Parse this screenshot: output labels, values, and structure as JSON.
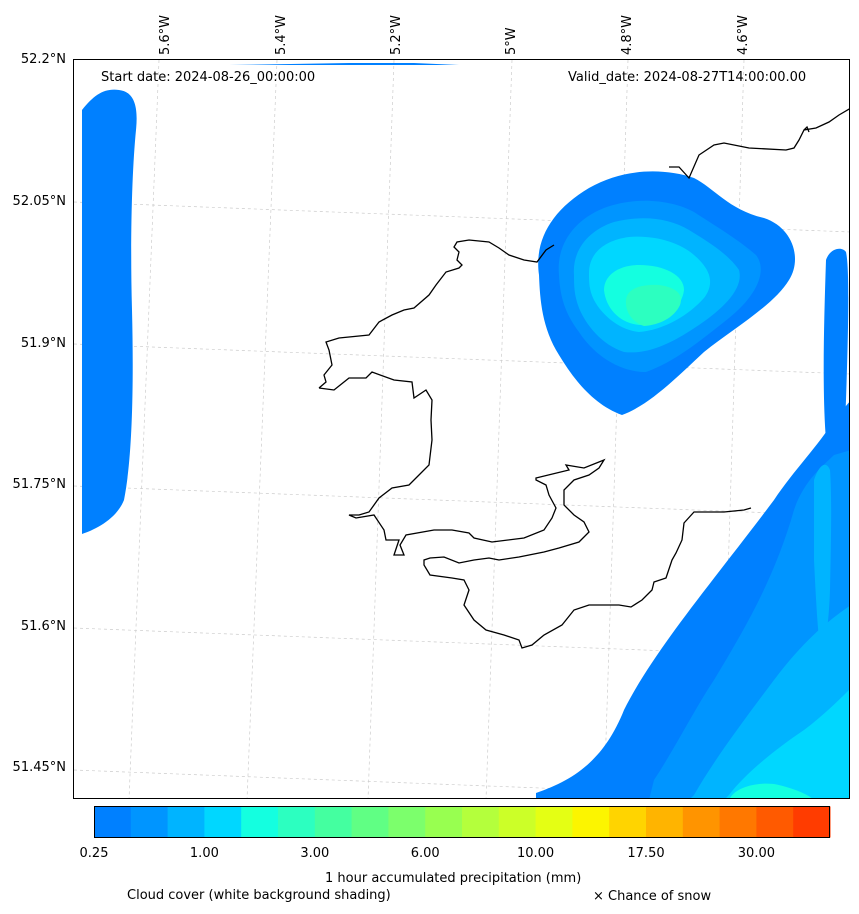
{
  "map": {
    "start_date": "Start date: 2024-08-26_00:00:00",
    "valid_date": "Valid_date: 2024-08-27T14:00:00.00",
    "lon_labels": [
      "5.6°W",
      "5.4°W",
      "5.2°W",
      "5°W",
      "4.8°W",
      "4.6°W"
    ],
    "lat_labels": [
      "52.2°N",
      "52.05°N",
      "51.9°N",
      "51.75°N",
      "51.6°N",
      "51.45°N"
    ],
    "coastline_color": "#000000",
    "gridline_color": "#cccccc"
  },
  "colorbar": {
    "colors": [
      "#0080ff",
      "#0095ff",
      "#00b4ff",
      "#00d7ff",
      "#14ffe0",
      "#2cffc0",
      "#44ffa0",
      "#60ff84",
      "#7cff6c",
      "#98ff50",
      "#b4ff3c",
      "#ccff28",
      "#e4ff14",
      "#fcf500",
      "#ffd400",
      "#ffb400",
      "#ff9400",
      "#ff7800",
      "#ff5a00",
      "#ff3c00"
    ],
    "tick_labels": [
      "0.25",
      "1.00",
      "3.00",
      "6.00",
      "10.00",
      "17.50",
      "30.00"
    ],
    "label": "1 hour accumulated precipitation (mm)"
  },
  "legend": {
    "cloud_cover": "Cloud cover (white background shading)",
    "snow": "× Chance of snow"
  }
}
